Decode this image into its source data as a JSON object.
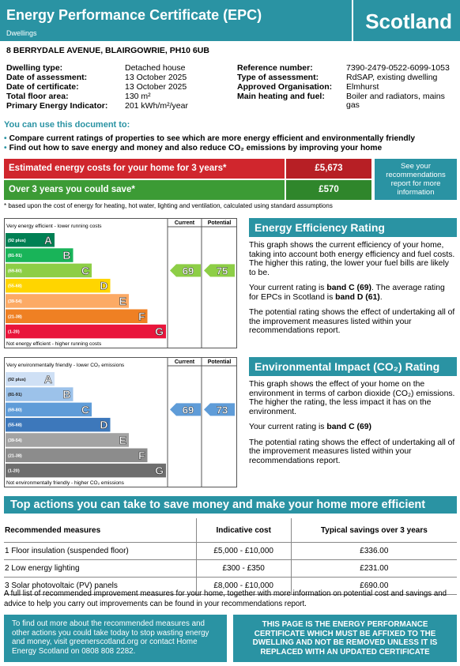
{
  "header": {
    "title": "Energy Performance Certificate (EPC)",
    "subtitle": "Dwellings",
    "country": "Scotland"
  },
  "address": "8 BERRYDALE AVENUE, BLAIRGOWRIE, PH10 6UB",
  "details": {
    "left": [
      [
        "Dwelling type:",
        "Detached house"
      ],
      [
        "Date of assessment:",
        "13 October 2025"
      ],
      [
        "Date of certificate:",
        "13 October 2025"
      ],
      [
        "Total floor area:",
        "130 m²"
      ],
      [
        "Primary Energy Indicator:",
        "201 kWh/m²/year"
      ]
    ],
    "right": [
      [
        "Reference number:",
        "7390-2479-0522-6099-1053"
      ],
      [
        "Type of assessment:",
        "RdSAP, existing dwelling"
      ],
      [
        "Approved Organisation:",
        "Elmhurst"
      ],
      [
        "Main heating and fuel:",
        "Boiler and radiators, mains gas"
      ]
    ]
  },
  "use": {
    "heading": "You can use this document to:",
    "bullets": [
      "Compare current ratings of properties to see which are more energy efficient and environmentally friendly",
      "Find out how to save energy and money and also reduce CO₂ emissions by improving your home"
    ]
  },
  "costs": {
    "rows": [
      {
        "label": "Estimated energy costs for your home for 3 years*",
        "value": "£5,673",
        "color": "#d0262d",
        "value_color": "#b71f25"
      },
      {
        "label": "Over 3 years you could save*",
        "value": "£570",
        "color": "#3c9b35",
        "value_color": "#2f862b"
      }
    ],
    "advice": "See your recommendations report for more information",
    "footnote": "* based upon the cost of energy for heating, hot water, lighting and ventilation, calculated using standard assumptions"
  },
  "efficiency_chart": {
    "top": "Very energy efficient - lower running costs",
    "bottom": "Not energy efficient - higher running costs",
    "current_heading": "Current",
    "potential_heading": "Potential",
    "current": 69,
    "potential": 75,
    "bands": [
      {
        "range": "(92 plus)",
        "letter": "A",
        "color": "#008054"
      },
      {
        "range": "(81-91)",
        "letter": "B",
        "color": "#19b459"
      },
      {
        "range": "(69-80)",
        "letter": "C",
        "color": "#8dce46"
      },
      {
        "range": "(55-68)",
        "letter": "D",
        "color": "#ffd500"
      },
      {
        "range": "(39-54)",
        "letter": "E",
        "color": "#fcaa65"
      },
      {
        "range": "(21-38)",
        "letter": "F",
        "color": "#ef8023"
      },
      {
        "range": "(1-20)",
        "letter": "G",
        "color": "#e9153b"
      }
    ]
  },
  "environment_chart": {
    "top": "Very environmentally friendly - lower CO₂ emissions",
    "bottom": "Not environmentally friendly - higher CO₂ emissions",
    "current_heading": "Current",
    "potential_heading": "Potential",
    "current": 69,
    "potential": 73,
    "bands": [
      {
        "range": "(92 plus)",
        "letter": "A",
        "color": "#cfe0f5"
      },
      {
        "range": "(81-91)",
        "letter": "B",
        "color": "#9cc2ea"
      },
      {
        "range": "(69-80)",
        "letter": "C",
        "color": "#5f9cd8"
      },
      {
        "range": "(55-68)",
        "letter": "D",
        "color": "#3d78bb"
      },
      {
        "range": "(39-54)",
        "letter": "E",
        "color": "#a3a3a3"
      },
      {
        "range": "(21-38)",
        "letter": "F",
        "color": "#8c8c8c"
      },
      {
        "range": "(1-20)",
        "letter": "G",
        "color": "#6e6e6e"
      }
    ]
  },
  "efficiency_text": {
    "title": "Energy Efficiency Rating",
    "paragraphs": [
      [
        "This graph shows the current efficiency of your home, taking into account both energy efficiency and fuel costs. The higher this rating, the lower your fuel bills are likely to be."
      ],
      [
        "Your current rating is ",
        "band C (69)",
        ". The average rating for EPCs in Scotland is ",
        "band D (61)",
        "."
      ],
      [
        "The potential rating shows the effect of undertaking all of the improvement measures listed within your recommendations report."
      ]
    ]
  },
  "environment_text": {
    "title": "Environmental Impact (CO₂) Rating",
    "paragraphs": [
      [
        "This graph shows the effect of your home on the environment in terms of carbon dioxide (CO₂) emissions. The higher the rating, the less impact it has on the environment."
      ],
      [
        "Your current rating is ",
        "band C (69)"
      ],
      [
        "The potential rating shows the effect of undertaking all of the improvement measures listed within your recommendations report."
      ]
    ]
  },
  "actions": {
    "title": "Top actions you can take to save money and make your home more efficient",
    "headers": [
      "Recommended measures",
      "Indicative cost",
      "Typical savings over 3 years"
    ],
    "rows": [
      [
        "1 Floor insulation (suspended floor)",
        "£5,000 - £10,000",
        "£336.00"
      ],
      [
        "2 Low energy lighting",
        "£300 - £350",
        "£231.00"
      ],
      [
        "3 Solar photovoltaic (PV) panels",
        "£8,000 - £10,000",
        "£690.00"
      ]
    ]
  },
  "footer": {
    "full_list": "A full list of recommended improvement measures for your home, together with more information on potential cost and savings and advice to help you carry out improvements can be found in your recommendations report.",
    "left_box": "To find out more about the recommended measures and other actions you could take today to stop wasting energy and money, visit greenerscotland.org or contact Home Energy Scotland on 0808 808 2282.",
    "right_box": "THIS PAGE IS THE ENERGY PERFORMANCE CERTIFICATE WHICH MUST BE AFFIXED TO THE DWELLING AND NOT BE REMOVED UNLESS IT IS REPLACED WITH AN UPDATED CERTIFICATE"
  }
}
